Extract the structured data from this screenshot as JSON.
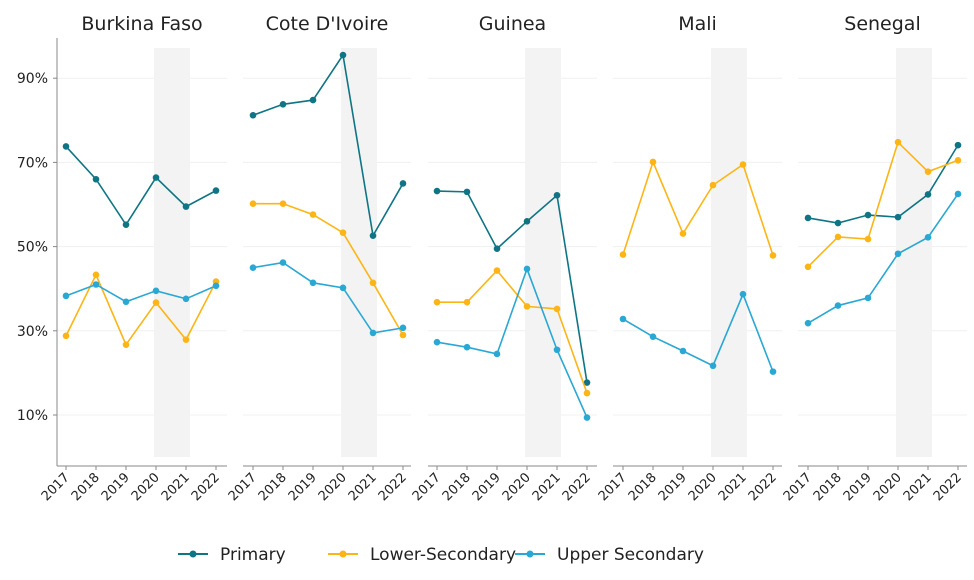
{
  "chart_data": {
    "type": "line",
    "facets": [
      "Burkina Faso",
      "Cote D'Ivoire",
      "Guinea",
      "Mali",
      "Senegal"
    ],
    "x": [
      "2017",
      "2018",
      "2019",
      "2020",
      "2021",
      "2022"
    ],
    "y_ticks": [
      "10%",
      "30%",
      "50%",
      "70%",
      "90%"
    ],
    "y_tick_values": [
      10,
      30,
      50,
      70,
      90
    ],
    "ylim": [
      0,
      100
    ],
    "shaded_years": [
      "2020",
      "2021"
    ],
    "grid": true,
    "legend_position": "bottom",
    "series": [
      {
        "name": "Primary",
        "color": "#0f7585",
        "values": {
          "Burkina Faso": [
            73.8,
            66.0,
            55.2,
            66.4,
            59.5,
            63.3
          ],
          "Cote D'Ivoire": [
            81.2,
            83.8,
            84.8,
            95.5,
            52.6,
            65.0
          ],
          "Guinea": [
            63.2,
            63.0,
            49.5,
            56.0,
            62.2,
            17.7
          ],
          "Mali": [
            null,
            null,
            null,
            null,
            null,
            null
          ],
          "Senegal": [
            56.8,
            55.6,
            57.5,
            57.0,
            62.4,
            74.1
          ]
        }
      },
      {
        "name": "Lower-Secondary",
        "color": "#fdb515",
        "values": {
          "Burkina Faso": [
            28.8,
            43.3,
            26.7,
            36.7,
            27.9,
            41.7
          ],
          "Cote D'Ivoire": [
            60.2,
            60.2,
            57.6,
            53.3,
            41.4,
            29.0
          ],
          "Guinea": [
            36.8,
            36.8,
            44.3,
            35.8,
            35.2,
            15.2
          ],
          "Mali": [
            48.1,
            70.1,
            53.1,
            64.6,
            69.5,
            47.9
          ],
          "Senegal": [
            45.2,
            52.3,
            51.8,
            74.8,
            67.8,
            70.5
          ]
        }
      },
      {
        "name": "Upper Secondary",
        "color": "#2aa8d4",
        "values": {
          "Burkina Faso": [
            38.3,
            41.0,
            36.9,
            39.5,
            37.6,
            40.7
          ],
          "Cote D'Ivoire": [
            45.0,
            46.2,
            41.4,
            40.2,
            29.5,
            30.7
          ],
          "Guinea": [
            27.3,
            26.1,
            24.5,
            44.7,
            25.5,
            9.4
          ],
          "Mali": [
            32.8,
            28.6,
            25.2,
            21.7,
            38.7,
            20.3
          ],
          "Senegal": [
            31.8,
            36.0,
            37.8,
            48.3,
            52.2,
            62.5
          ]
        }
      }
    ]
  }
}
